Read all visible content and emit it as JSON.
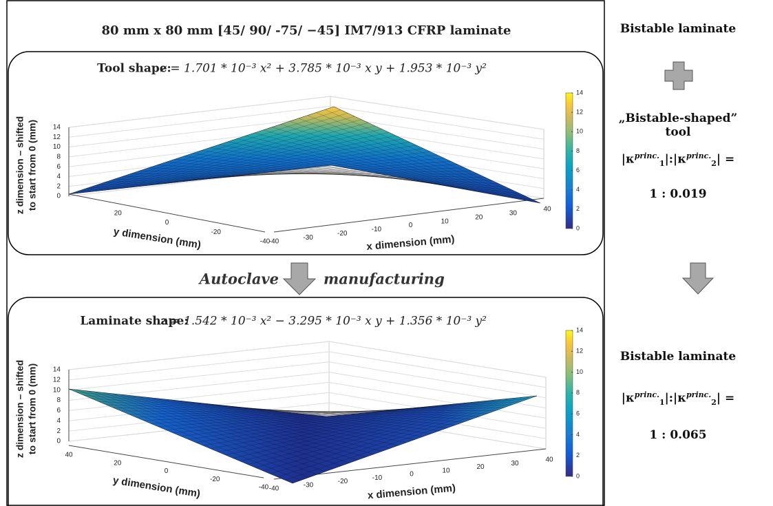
{
  "title": "80 mm x 80 mm [45/ 90/ -75/ −45] IM7/913 CFRP laminate",
  "panels": [
    {
      "label": "Tool shape:",
      "equation": "z = 1.701 * 10⁻³ x² + 3.785 * 10⁻³ x y + 1.953 * 10⁻³ y²",
      "plot": {
        "z_label": [
          "z dimension – shifted",
          "to start from 0 (mm)"
        ],
        "y_label": "y dimension (mm)",
        "x_label": "x dimension (mm)",
        "zlim": [
          0,
          14
        ],
        "zticks": [
          0,
          2,
          4,
          6,
          8,
          10,
          12,
          14
        ],
        "ylim": [
          40,
          -40
        ],
        "yticks": [
          20,
          0,
          -20,
          -40
        ],
        "xlim": [
          -40,
          40
        ],
        "xticks": [
          -40,
          -30,
          -20,
          -10,
          0,
          10,
          20,
          30,
          40
        ],
        "colorbar_lim": [
          0,
          14
        ],
        "colorbar_ticks": [
          0,
          2,
          4,
          6,
          8,
          10,
          12,
          14
        ]
      }
    },
    {
      "label": "Laminate shape:",
      "equation": "z = 1.542 * 10⁻³ x² − 3.295 * 10⁻³ x y + 1.356 * 10⁻³ y²",
      "plot": {
        "z_label": [
          "z dimension – shifted",
          "to start from 0 (mm)"
        ],
        "y_label": "y dimension (mm)",
        "x_label": "x dimension (mm)",
        "zlim": [
          0,
          14
        ],
        "zticks": [
          0,
          2,
          4,
          6,
          8,
          10,
          12,
          14
        ],
        "ylim": [
          40,
          -40
        ],
        "yticks": [
          40,
          20,
          0,
          -20,
          -40
        ],
        "xlim": [
          -40,
          40
        ],
        "xticks": [
          -40,
          -30,
          -20,
          -10,
          0,
          10,
          20,
          30,
          40
        ],
        "colorbar_lim": [
          0,
          14
        ],
        "colorbar_ticks": [
          0,
          2,
          4,
          6,
          8,
          10,
          12,
          14
        ]
      }
    }
  ],
  "process": [
    "Autoclave",
    "manufacturing"
  ],
  "side": {
    "top_label": "Bistable laminate",
    "tool_label": "„Bistable-shaped” tool",
    "ratio_parts": [
      "|κ",
      "princ.",
      "1",
      "|:|κ",
      "princ.",
      "2",
      "| ="
    ],
    "tool_ratio": "1 : 0.019",
    "bottom_label": "Bistable laminate",
    "laminate_ratio": "1 : 0.065"
  }
}
